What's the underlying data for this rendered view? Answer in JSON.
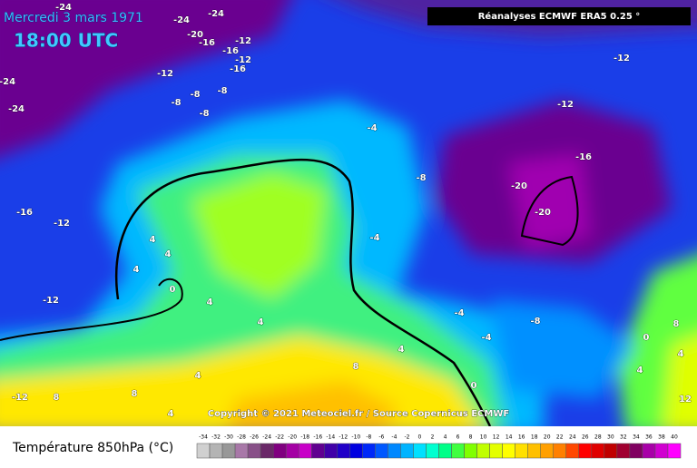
{
  "header": {
    "date": "Mercredi 3 mars 1971",
    "time": "18:00 UTC",
    "source_box": "Réanalyses ECMWF ERA5 0.25 °"
  },
  "map": {
    "copyright": "Copyright © 2021 Meteociel.fr / Source Copernicus ECMWF",
    "contour_labels": [
      "-24",
      "-24",
      "-24",
      "-20",
      "-16",
      "-12",
      "-16",
      "-12",
      "-16",
      "-12",
      "-24",
      "-8",
      "-8",
      "-24",
      "-8",
      "-8",
      "-12",
      "-12",
      "-4",
      "-16",
      "-8",
      "-20",
      "-20",
      "-16",
      "-12",
      "-4",
      "4",
      "4",
      "4",
      "0",
      "-12",
      "4",
      "4",
      "-4",
      "-8",
      "8",
      "0",
      "-4",
      "4",
      "4",
      "8",
      "4",
      "4",
      "8",
      "0",
      "-12",
      "8",
      "12",
      "4"
    ]
  },
  "legend": {
    "title": "Température 850hPa (°C)",
    "labels": [
      -34,
      -32,
      -30,
      -28,
      -26,
      -24,
      -22,
      -20,
      -18,
      -16,
      -14,
      -12,
      -10,
      -8,
      -6,
      -4,
      -2,
      0,
      2,
      4,
      6,
      8,
      10,
      12,
      14,
      16,
      18,
      20,
      22,
      24,
      26,
      28,
      30,
      32,
      34,
      36,
      38,
      40
    ]
  }
}
